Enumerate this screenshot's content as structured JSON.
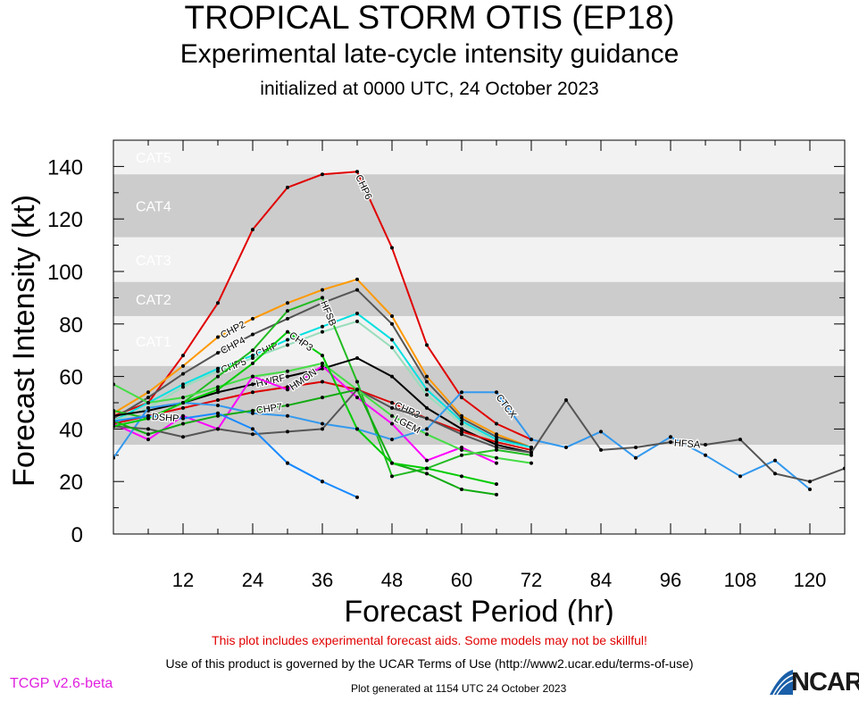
{
  "header": {
    "title": "TROPICAL STORM OTIS (EP18)",
    "subtitle": "Experimental late-cycle intensity guidance",
    "initialized": "initialized at 0000 UTC, 24 October 2023"
  },
  "footer": {
    "disclaimer": "This plot includes experimental forecast aids. Some models may not be skillful!",
    "terms": "Use of this product is governed by the UCAR Terms of Use (http://www2.ucar.edu/terms-of-use)",
    "version": "TCGP v2.6-beta",
    "generated": "Plot generated at 1154 UTC   24 October 2023",
    "logo_text": "NCAR"
  },
  "chart_data": {
    "type": "line",
    "xlabel": "Forecast Period (hr)",
    "ylabel": "Forecast Intensity (kt)",
    "xlim": [
      0,
      126
    ],
    "ylim": [
      0,
      150
    ],
    "xticks": [
      12,
      24,
      36,
      48,
      60,
      72,
      84,
      96,
      108,
      120
    ],
    "yticks": [
      0,
      20,
      40,
      60,
      80,
      100,
      120,
      140
    ],
    "categories_bands": [
      {
        "label": "CAT5",
        "min": 137,
        "max": 150,
        "color": "#f2f2f2"
      },
      {
        "label": "CAT4",
        "min": 113,
        "max": 137,
        "color": "#cccccc"
      },
      {
        "label": "CAT3",
        "min": 96,
        "max": 113,
        "color": "#f2f2f2"
      },
      {
        "label": "CAT2",
        "min": 83,
        "max": 96,
        "color": "#cccccc"
      },
      {
        "label": "CAT1",
        "min": 64,
        "max": 83,
        "color": "#f2f2f2"
      },
      {
        "label": "",
        "min": 34,
        "max": 64,
        "color": "#cccccc"
      },
      {
        "label": "",
        "min": 0,
        "max": 34,
        "color": "#f2f2f2"
      }
    ],
    "series": [
      {
        "name": "CHP6",
        "color": "#e00000",
        "label_hour": 42,
        "x": [
          0,
          6,
          12,
          18,
          24,
          30,
          36,
          42,
          48,
          54,
          60,
          66,
          72
        ],
        "y": [
          45,
          50,
          68,
          88,
          116,
          132,
          137,
          138,
          109,
          72,
          52,
          42,
          36
        ]
      },
      {
        "name": "CHP2",
        "color": "#ff9900",
        "label_hour": 18,
        "x": [
          0,
          6,
          12,
          18,
          24,
          30,
          36,
          42,
          48,
          54,
          60,
          66,
          72
        ],
        "y": [
          46,
          54,
          64,
          75,
          82,
          88,
          93,
          97,
          83,
          60,
          45,
          38,
          33
        ]
      },
      {
        "name": "CHP4",
        "color": "#555555",
        "label_hour": 18,
        "x": [
          0,
          6,
          12,
          18,
          24,
          30,
          36,
          42,
          48,
          54,
          60,
          66,
          72
        ],
        "y": [
          44,
          52,
          61,
          69,
          76,
          82,
          88,
          93,
          80,
          58,
          44,
          37,
          33
        ]
      },
      {
        "name": "CHIP",
        "color": "#00e0e0",
        "label_hour": 24,
        "x": [
          0,
          6,
          12,
          18,
          24,
          30,
          36,
          42,
          48,
          54,
          60,
          66,
          72
        ],
        "y": [
          43,
          50,
          57,
          63,
          68,
          74,
          79,
          84,
          74,
          55,
          43,
          36,
          33
        ]
      },
      {
        "name": "CHP5",
        "color": "#99ddbb",
        "label_hour": 18,
        "x": [
          0,
          6,
          12,
          18,
          24,
          30,
          36,
          42,
          48,
          54,
          60,
          66,
          72
        ],
        "y": [
          43,
          48,
          56,
          62,
          67,
          72,
          77,
          81,
          71,
          53,
          42,
          35,
          32
        ]
      },
      {
        "name": "HFSB",
        "color": "#22bb22",
        "label_hour": 36,
        "x": [
          0,
          6,
          12,
          18,
          24,
          30,
          36,
          42,
          48,
          54,
          60,
          66,
          72
        ],
        "y": [
          47,
          44,
          50,
          60,
          70,
          85,
          90,
          58,
          22,
          25,
          30,
          32,
          30
        ]
      },
      {
        "name": "HWRF",
        "color": "#000000",
        "label_hour": 24,
        "x": [
          0,
          6,
          12,
          18,
          24,
          30,
          36,
          42,
          48,
          54,
          60,
          66,
          72
        ],
        "y": [
          45,
          47,
          50,
          54,
          57,
          60,
          63,
          67,
          60,
          48,
          40,
          34,
          31
        ]
      },
      {
        "name": "CHR3",
        "color": "#dd0000",
        "label_hour": 48,
        "x": [
          0,
          6,
          12,
          18,
          24,
          30,
          36,
          42,
          48,
          54,
          60,
          66,
          72
        ],
        "y": [
          42,
          45,
          48,
          51,
          54,
          56,
          58,
          55,
          50,
          44,
          39,
          35,
          32
        ]
      },
      {
        "name": "HMON",
        "color": "#ff00ff",
        "label_hour": 30,
        "x": [
          0,
          6,
          12,
          18,
          24,
          30,
          36,
          42,
          48,
          54,
          60,
          66
        ],
        "y": [
          42,
          36,
          45,
          40,
          60,
          55,
          64,
          52,
          42,
          28,
          33,
          27
        ]
      },
      {
        "name": "CTCX",
        "color": "#3399ee",
        "label_hour": 66,
        "x": [
          0,
          6,
          12,
          18,
          24,
          30,
          36,
          42,
          48,
          54,
          60,
          66,
          72,
          78,
          84,
          90,
          96,
          102,
          108,
          114,
          120
        ],
        "y": [
          29,
          48,
          50,
          49,
          46,
          45,
          42,
          40,
          36,
          40,
          54,
          54,
          36,
          33,
          39,
          29,
          37,
          30,
          22,
          28,
          17
        ]
      },
      {
        "name": "HFSA",
        "color": "#555555",
        "label_hour": 96,
        "x": [
          0,
          6,
          12,
          18,
          24,
          30,
          36,
          42,
          48,
          54,
          60,
          66,
          72,
          78,
          84,
          90,
          96,
          102,
          108,
          114,
          120,
          126
        ],
        "y": [
          41,
          40,
          37,
          40,
          38,
          39,
          40,
          55,
          48,
          44,
          38,
          33,
          31,
          51,
          32,
          33,
          35,
          34,
          36,
          23,
          20,
          25
        ]
      },
      {
        "name": "LGEM",
        "color": "#44dd44",
        "label_hour": 48,
        "x": [
          0,
          6,
          12,
          18,
          24,
          30,
          36,
          42,
          48,
          54,
          60,
          66,
          72
        ],
        "y": [
          57,
          50,
          52,
          56,
          60,
          62,
          65,
          55,
          45,
          38,
          32,
          29,
          27
        ]
      },
      {
        "name": "CHP7",
        "color": "#11aa11",
        "label_hour": 24,
        "x": [
          0,
          6,
          12,
          18,
          24,
          30,
          36,
          42,
          48,
          54,
          60,
          66
        ],
        "y": [
          43,
          38,
          42,
          45,
          47,
          49,
          52,
          55,
          27,
          23,
          17,
          15
        ]
      },
      {
        "name": "CHP3",
        "color": "#00cc00",
        "label_hour": 30,
        "x": [
          0,
          6,
          12,
          18,
          24,
          30,
          36,
          42,
          48,
          54,
          60,
          66
        ],
        "y": [
          41,
          44,
          50,
          55,
          65,
          77,
          68,
          40,
          27,
          25,
          22,
          19
        ]
      },
      {
        "name": "DSHP",
        "color": "#1a8aff",
        "label_hour": 6,
        "x": [
          0,
          6,
          12,
          18,
          24,
          30,
          36
        ],
        "y": [
          43,
          45,
          44,
          46,
          40,
          27,
          20
        ]
      }
    ],
    "extra_series": [
      {
        "name": "",
        "color": "#1a8aff",
        "x": [
          30,
          36,
          42
        ],
        "y": [
          27,
          20,
          14
        ]
      }
    ]
  }
}
